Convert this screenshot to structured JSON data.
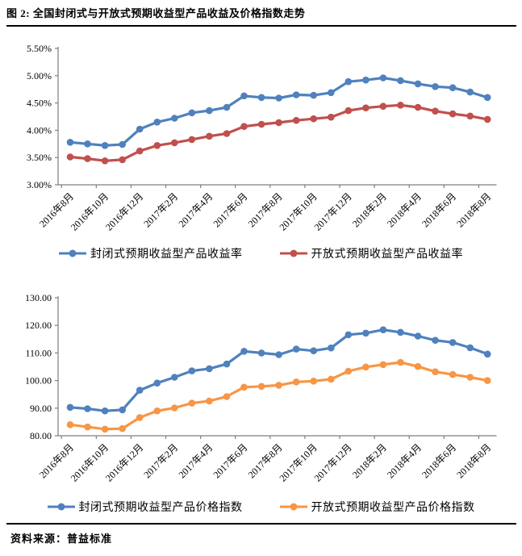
{
  "page": {
    "title": "图 2: 全国封闭式与开放式预期收益型产品收益及价格指数走势",
    "source": "资料来源：普益标准"
  },
  "colors": {
    "closed_series": "#4F81BD",
    "open_yield_series": "#C0504D",
    "open_index_series": "#F79646",
    "axis": "#7F7F7F",
    "text": "#000000",
    "divider": "#000000"
  },
  "chart_data": [
    {
      "id": "yield-chart",
      "type": "line",
      "x": [
        "2016年8月",
        "2016年9月",
        "2016年10月",
        "2016年11月",
        "2016年12月",
        "2017年1月",
        "2017年2月",
        "2017年3月",
        "2017年4月",
        "2017年5月",
        "2017年6月",
        "2017年7月",
        "2017年8月",
        "2017年9月",
        "2017年10月",
        "2017年11月",
        "2017年12月",
        "2018年1月",
        "2018年2月",
        "2018年3月",
        "2018年4月",
        "2018年5月",
        "2018年6月",
        "2018年7月",
        "2018年8月"
      ],
      "x_tick_labels": [
        "2016年8月",
        "2016年10月",
        "2016年12月",
        "2017年2月",
        "2017年4月",
        "2017年6月",
        "2017年8月",
        "2017年10月",
        "2017年12月",
        "2018年2月",
        "2018年4月",
        "2018年6月",
        "2018年8月"
      ],
      "y_ticks": [
        "5.50%",
        "5.00%",
        "4.50%",
        "4.00%",
        "3.50%",
        "3.00%"
      ],
      "ylim": [
        3.0,
        5.5
      ],
      "ystep": 0.5,
      "grid": false,
      "legend_position": "bottom",
      "series": [
        {
          "name": "封闭式预期收益型产品收益率",
          "color": "#4F81BD",
          "values": [
            3.78,
            3.75,
            3.72,
            3.74,
            4.02,
            4.15,
            4.22,
            4.32,
            4.36,
            4.42,
            4.63,
            4.6,
            4.59,
            4.65,
            4.64,
            4.69,
            4.89,
            4.92,
            4.96,
            4.91,
            4.85,
            4.8,
            4.78,
            4.7,
            4.6
          ]
        },
        {
          "name": "开放式预期收益型产品收益率",
          "color": "#C0504D",
          "values": [
            3.51,
            3.48,
            3.44,
            3.46,
            3.62,
            3.72,
            3.77,
            3.83,
            3.89,
            3.94,
            4.07,
            4.11,
            4.14,
            4.18,
            4.21,
            4.24,
            4.36,
            4.41,
            4.44,
            4.46,
            4.42,
            4.35,
            4.3,
            4.26,
            4.2
          ]
        }
      ]
    },
    {
      "id": "price-index-chart",
      "type": "line",
      "x": [
        "2016年8月",
        "2016年9月",
        "2016年10月",
        "2016年11月",
        "2016年12月",
        "2017年1月",
        "2017年2月",
        "2017年3月",
        "2017年4月",
        "2017年5月",
        "2017年6月",
        "2017年7月",
        "2017年8月",
        "2017年9月",
        "2017年10月",
        "2017年11月",
        "2017年12月",
        "2018年1月",
        "2018年2月",
        "2018年3月",
        "2018年4月",
        "2018年5月",
        "2018年6月",
        "2018年7月",
        "2018年8月"
      ],
      "x_tick_labels": [
        "2016年8月",
        "2016年10月",
        "2016年12月",
        "2017年2月",
        "2017年4月",
        "2017年6月",
        "2017年8月",
        "2017年10月",
        "2017年12月",
        "2018年2月",
        "2018年4月",
        "2018年6月",
        "2018年8月"
      ],
      "y_ticks": [
        "130.00",
        "120.00",
        "110.00",
        "100.00",
        "90.00",
        "80.00"
      ],
      "ylim": [
        80,
        130
      ],
      "ystep": 10,
      "grid": false,
      "legend_position": "bottom",
      "series": [
        {
          "name": "封闭式预期收益型产品价格指数",
          "color": "#4F81BD",
          "values": [
            90.3,
            89.8,
            89.0,
            89.4,
            96.5,
            99.1,
            101.2,
            103.5,
            104.3,
            106.0,
            110.6,
            110.0,
            109.4,
            111.4,
            110.8,
            111.8,
            116.6,
            117.2,
            118.4,
            117.5,
            116.1,
            114.6,
            113.8,
            111.9,
            109.6
          ]
        },
        {
          "name": "开放式预期收益型产品价格指数",
          "color": "#F79646",
          "values": [
            84.0,
            83.2,
            82.4,
            82.6,
            86.6,
            89.0,
            90.1,
            91.8,
            92.6,
            94.2,
            97.6,
            97.9,
            98.3,
            99.5,
            99.8,
            100.5,
            103.4,
            104.9,
            105.8,
            106.6,
            105.1,
            103.2,
            102.2,
            101.2,
            100.0
          ]
        }
      ]
    }
  ]
}
